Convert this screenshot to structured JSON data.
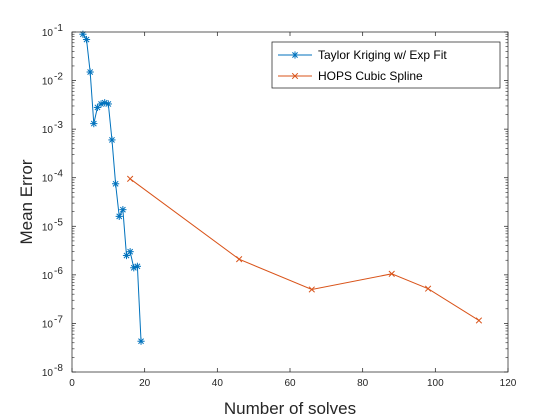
{
  "chart_data": {
    "type": "line",
    "title": "",
    "xlabel": "Number of solves",
    "ylabel": "Mean Error",
    "x_scale": "linear",
    "y_scale": "log",
    "xlim": [
      0,
      120
    ],
    "ylim": [
      1e-08,
      0.1
    ],
    "x_ticks": [
      0,
      20,
      40,
      60,
      80,
      100,
      120
    ],
    "y_ticks": [
      {
        "value": 1e-08,
        "base": "10",
        "exp": "-8"
      },
      {
        "value": 1e-07,
        "base": "10",
        "exp": "-7"
      },
      {
        "value": 1e-06,
        "base": "10",
        "exp": "-6"
      },
      {
        "value": 1e-05,
        "base": "10",
        "exp": "-5"
      },
      {
        "value": 0.0001,
        "base": "10",
        "exp": "-4"
      },
      {
        "value": 0.001,
        "base": "10",
        "exp": "-3"
      },
      {
        "value": 0.01,
        "base": "10",
        "exp": "-2"
      },
      {
        "value": 0.1,
        "base": "10",
        "exp": "-1"
      }
    ],
    "grid": false,
    "legend_position": "top-right",
    "series": [
      {
        "name": "Taylor Kriging w/ Exp Fit",
        "color": "#0072BD",
        "marker": "asterisk",
        "x": [
          3,
          4,
          5,
          6,
          7,
          8,
          9,
          10,
          11,
          12,
          13,
          14,
          15,
          16,
          17,
          18,
          19
        ],
        "y": [
          0.09,
          0.07,
          0.015,
          0.0013,
          0.0028,
          0.0033,
          0.0035,
          0.0033,
          0.0006,
          7.5e-05,
          1.6e-05,
          2.2e-05,
          2.5e-06,
          3e-06,
          1.4e-06,
          1.5e-06,
          4.3e-08
        ]
      },
      {
        "name": "HOPS Cubic Spline",
        "color": "#D95319",
        "marker": "x",
        "x": [
          16,
          46,
          66,
          88,
          98,
          112
        ],
        "y": [
          9.5e-05,
          2.1e-06,
          5e-07,
          1.05e-06,
          5.2e-07,
          1.15e-07
        ]
      }
    ]
  }
}
